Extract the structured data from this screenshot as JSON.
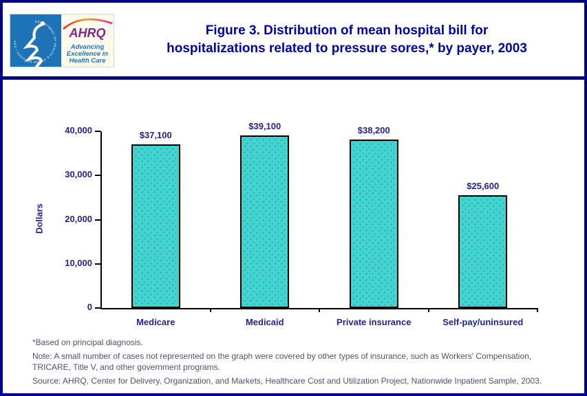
{
  "header": {
    "logo": {
      "hhs_seal_text": "DEPARTMENT OF HEALTH & HUMAN SERVICES • USA",
      "ahrq_acronym": "AHRQ",
      "tagline_line1": "Advancing",
      "tagline_line2": "Excellence in",
      "tagline_line3": "Health Care"
    },
    "title_line1": "Figure 3. Distribution of mean hospital bill for",
    "title_line2": "hospitalizations related to pressure sores,* by payer, 2003"
  },
  "chart_data": {
    "type": "bar",
    "title": "Figure 3. Distribution of mean hospital bill for hospitalizations related to pressure sores, by payer, 2003",
    "categories": [
      "Medicare",
      "Medicaid",
      "Private insurance",
      "Self-pay/uninsured"
    ],
    "values": [
      37100,
      39100,
      38200,
      25600
    ],
    "value_labels": [
      "$37,100",
      "$39,100",
      "$38,200",
      "$25,600"
    ],
    "xlabel": "",
    "ylabel": "Dollars",
    "ylim": [
      0,
      40000
    ],
    "yticks": [
      0,
      10000,
      20000,
      30000,
      40000
    ],
    "ytick_labels": [
      "0",
      "10,000",
      "20,000",
      "30,000",
      "40,000"
    ],
    "grid": false,
    "legend": "none",
    "bar_color": "#3fd7cd",
    "bar_border_color": "#000000",
    "label_color": "#23238c"
  },
  "footnotes": {
    "asterisk_note": "*Based on principal diagnosis.",
    "note": "Note: A small number of cases not represented on the graph were covered by other types of insurance, such as Workers' Compensation,\nTRICARE, Title V, and other government programs.",
    "source": "Source: AHRQ, Center for Delivery, Organization, and Markets, Healthcare Cost and Utilization Project, Nationwide Inpatient Sample, 2003."
  },
  "colors": {
    "page_border": "#00008b",
    "divider": "#00008b",
    "title_text": "#0000a0",
    "chart_label_text": "#23238c",
    "bar_fill": "#3fd7cd",
    "footnote_text": "#50506e",
    "hhs_panel_blue": "#1e73b7",
    "ahrq_purple": "#83268e",
    "tagline_blue": "#1b74c4"
  }
}
